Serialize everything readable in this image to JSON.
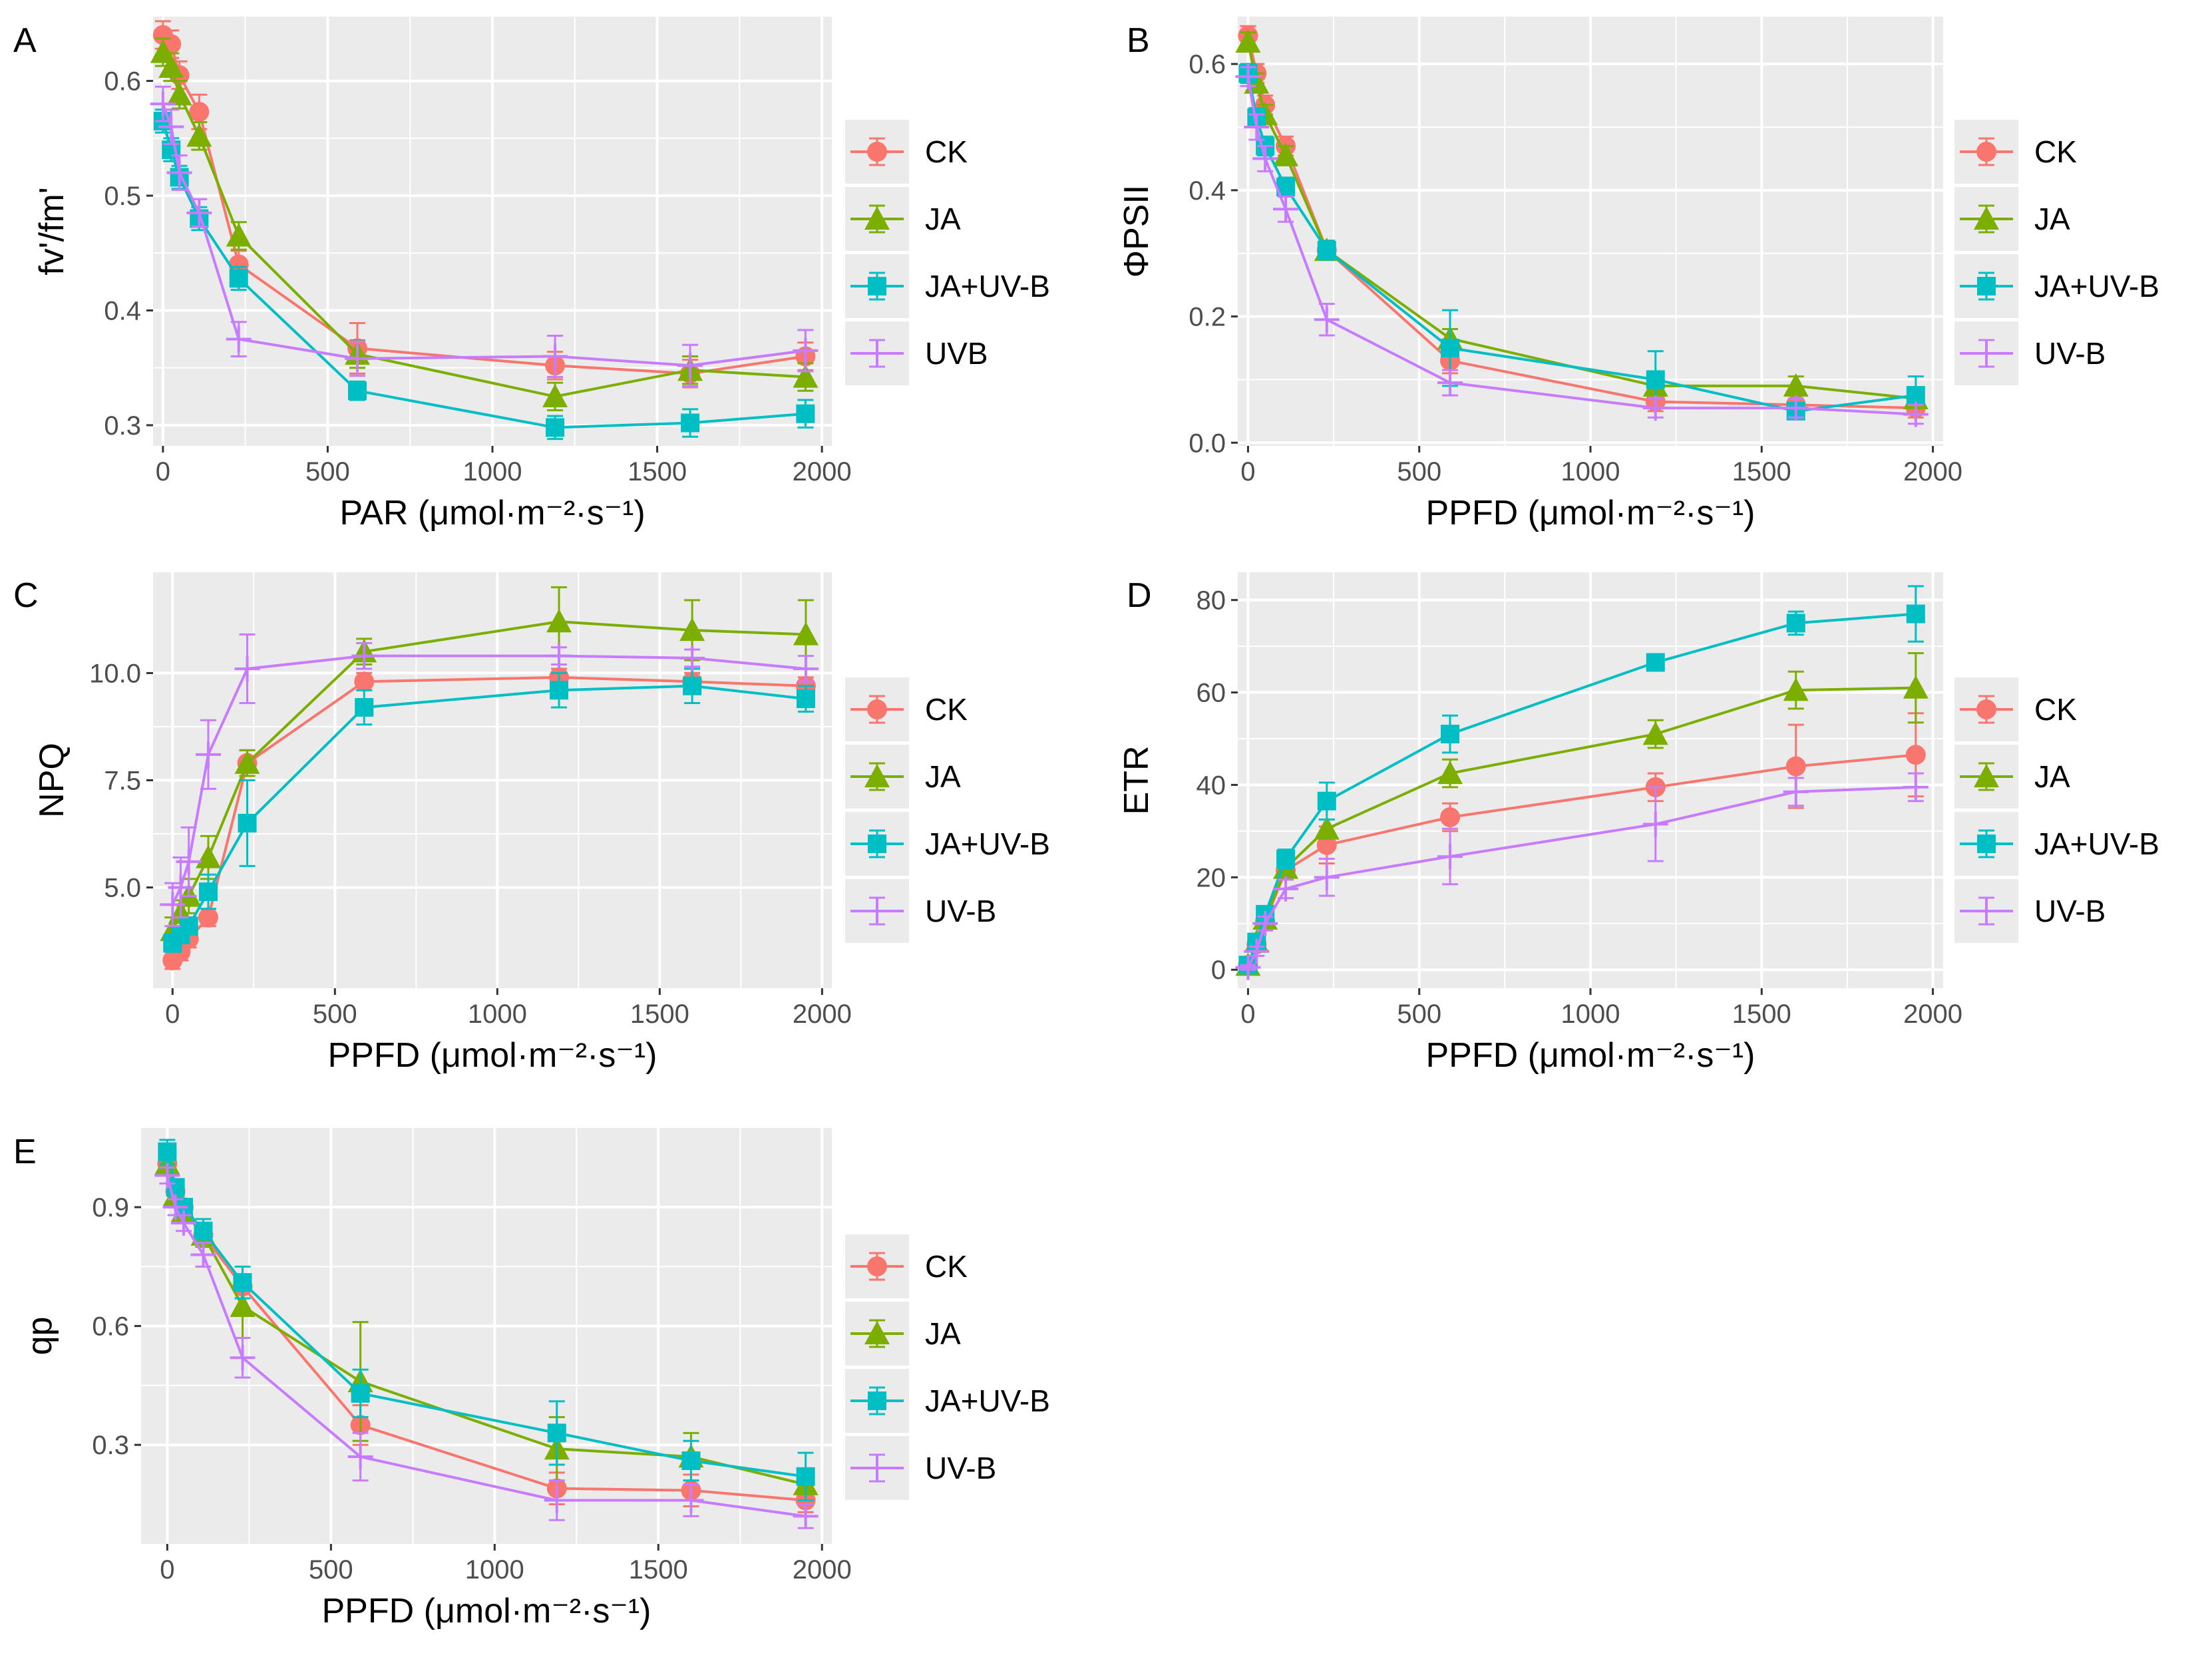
{
  "figure": {
    "panel_count": 5
  },
  "chart_data": [
    {
      "panel": "A",
      "type": "line",
      "xlabel": "PAR (μmol·m⁻²·s⁻¹)",
      "ylabel": "fv'/fm'",
      "xlim": [
        -30,
        2030
      ],
      "ylim": [
        0.282,
        0.656
      ],
      "xticks": [
        0,
        500,
        1000,
        1500,
        2000
      ],
      "xtick_labels": [
        "0",
        "500",
        "1000",
        "1500",
        "2000"
      ],
      "yticks": [
        0.3,
        0.4,
        0.5,
        0.6
      ],
      "ytick_labels": [
        "0.3",
        "0.4",
        "0.5",
        "0.6"
      ],
      "legend": [
        "CK",
        "JA",
        "JA+UV-B",
        "UVB"
      ],
      "series": [
        {
          "name": "CK",
          "x": [
            0,
            25,
            50,
            110,
            230,
            590,
            1190,
            1600,
            1950
          ],
          "y": [
            0.64,
            0.632,
            0.605,
            0.573,
            0.44,
            0.367,
            0.352,
            0.345,
            0.36
          ],
          "err": [
            0.012,
            0.012,
            0.012,
            0.015,
            0.012,
            0.022,
            0.012,
            0.012,
            0.012
          ]
        },
        {
          "name": "JA",
          "x": [
            0,
            25,
            50,
            110,
            230,
            590,
            1190,
            1600,
            1950
          ],
          "y": [
            0.625,
            0.612,
            0.588,
            0.552,
            0.465,
            0.362,
            0.325,
            0.348,
            0.342
          ],
          "err": [
            0.012,
            0.012,
            0.012,
            0.012,
            0.012,
            0.012,
            0.012,
            0.012,
            0.012
          ]
        },
        {
          "name": "JA+UV-B",
          "x": [
            0,
            25,
            50,
            110,
            230,
            590,
            1190,
            1600,
            1950
          ],
          "y": [
            0.565,
            0.54,
            0.516,
            0.48,
            0.428,
            0.33,
            0.298,
            0.302,
            0.31
          ],
          "err": [
            0.01,
            0.01,
            0.01,
            0.01,
            0.01,
            0.008,
            0.01,
            0.012,
            0.012
          ]
        },
        {
          "name": "UVB",
          "x": [
            0,
            25,
            50,
            110,
            230,
            590,
            1190,
            1600,
            1950
          ],
          "y": [
            0.58,
            0.56,
            0.52,
            0.485,
            0.375,
            0.358,
            0.36,
            0.352,
            0.365
          ],
          "err": [
            0.015,
            0.015,
            0.015,
            0.012,
            0.015,
            0.015,
            0.018,
            0.018,
            0.018
          ]
        }
      ]
    },
    {
      "panel": "B",
      "type": "line",
      "xlabel": "PPFD (μmol·m⁻²·s⁻¹)",
      "ylabel": "ΦPSII",
      "xlim": [
        -30,
        2030
      ],
      "ylim": [
        -0.005,
        0.675
      ],
      "xticks": [
        0,
        500,
        1000,
        1500,
        2000
      ],
      "xtick_labels": [
        "0",
        "500",
        "1000",
        "1500",
        "2000"
      ],
      "yticks": [
        0.0,
        0.2,
        0.4,
        0.6
      ],
      "ytick_labels": [
        "0.0",
        "0.2",
        "0.4",
        "0.6"
      ],
      "legend": [
        "CK",
        "JA",
        "JA+UV-B",
        "UV-B"
      ],
      "series": [
        {
          "name": "CK",
          "x": [
            0,
            25,
            50,
            110,
            230,
            590,
            1190,
            1600,
            1950
          ],
          "y": [
            0.645,
            0.585,
            0.535,
            0.47,
            0.305,
            0.13,
            0.065,
            0.06,
            0.055
          ],
          "err": [
            0.015,
            0.015,
            0.015,
            0.015,
            0.015,
            0.02,
            0.015,
            0.015,
            0.015
          ]
        },
        {
          "name": "JA",
          "x": [
            0,
            25,
            50,
            110,
            230,
            590,
            1190,
            1600,
            1950
          ],
          "y": [
            0.635,
            0.57,
            0.52,
            0.455,
            0.305,
            0.165,
            0.09,
            0.09,
            0.07
          ],
          "err": [
            0.015,
            0.015,
            0.015,
            0.015,
            0.015,
            0.015,
            0.015,
            0.015,
            0.015
          ]
        },
        {
          "name": "JA+UV-B",
          "x": [
            0,
            25,
            50,
            110,
            230,
            590,
            1190,
            1600,
            1950
          ],
          "y": [
            0.585,
            0.515,
            0.47,
            0.405,
            0.305,
            0.15,
            0.1,
            0.05,
            0.075
          ],
          "err": [
            0.015,
            0.015,
            0.015,
            0.015,
            0.015,
            0.06,
            0.045,
            0.01,
            0.03
          ]
        },
        {
          "name": "UV-B",
          "x": [
            0,
            25,
            50,
            110,
            230,
            590,
            1190,
            1600,
            1950
          ],
          "y": [
            0.58,
            0.5,
            0.45,
            0.37,
            0.195,
            0.095,
            0.055,
            0.055,
            0.045
          ],
          "err": [
            0.015,
            0.02,
            0.02,
            0.02,
            0.025,
            0.02,
            0.015,
            0.015,
            0.015
          ]
        }
      ]
    },
    {
      "panel": "C",
      "type": "line",
      "xlabel": "PPFD (μmol·m⁻²·s⁻¹)",
      "ylabel": "NPQ",
      "xlim": [
        -60,
        2030
      ],
      "ylim": [
        2.65,
        12.35
      ],
      "xticks": [
        0,
        500,
        1000,
        1500,
        2000
      ],
      "xtick_labels": [
        "0",
        "500",
        "1000",
        "1500",
        "2000"
      ],
      "yticks": [
        5.0,
        7.5,
        10.0
      ],
      "ytick_labels": [
        "5.0",
        "7.5",
        "10.0"
      ],
      "legend": [
        "CK",
        "JA",
        "JA+UV-B",
        "UV-B"
      ],
      "series": [
        {
          "name": "CK",
          "x": [
            0,
            25,
            50,
            110,
            230,
            590,
            1190,
            1600,
            1950
          ],
          "y": [
            3.3,
            3.5,
            3.8,
            4.3,
            7.9,
            9.8,
            9.9,
            9.8,
            9.7
          ],
          "err": [
            0.2,
            0.2,
            0.2,
            0.2,
            0.3,
            0.2,
            0.2,
            0.2,
            0.2
          ]
        },
        {
          "name": "JA",
          "x": [
            0,
            25,
            50,
            110,
            230,
            590,
            1190,
            1600,
            1950
          ],
          "y": [
            4.0,
            4.4,
            4.8,
            5.7,
            7.9,
            10.5,
            11.2,
            11.0,
            10.9
          ],
          "err": [
            0.3,
            0.3,
            0.4,
            0.5,
            0.3,
            0.3,
            0.8,
            0.7,
            0.8
          ]
        },
        {
          "name": "JA+UV-B",
          "x": [
            0,
            25,
            50,
            110,
            230,
            590,
            1190,
            1600,
            1950
          ],
          "y": [
            3.7,
            3.9,
            4.1,
            4.9,
            6.5,
            9.2,
            9.6,
            9.7,
            9.4
          ],
          "err": [
            0.2,
            0.2,
            0.2,
            0.4,
            1.0,
            0.4,
            0.4,
            0.4,
            0.3
          ]
        },
        {
          "name": "UV-B",
          "x": [
            0,
            25,
            50,
            110,
            230,
            590,
            1190,
            1600,
            1950
          ],
          "y": [
            4.6,
            5.0,
            5.6,
            8.1,
            10.1,
            10.4,
            10.4,
            10.35,
            10.1
          ],
          "err": [
            0.5,
            0.7,
            0.8,
            0.8,
            0.8,
            0.3,
            0.2,
            0.2,
            0.3
          ]
        }
      ]
    },
    {
      "panel": "D",
      "type": "line",
      "xlabel": "PPFD (μmol·m⁻²·s⁻¹)",
      "ylabel": "ETR",
      "xlim": [
        -30,
        2030
      ],
      "ylim": [
        -4,
        86
      ],
      "xticks": [
        0,
        500,
        1000,
        1500,
        2000
      ],
      "xtick_labels": [
        "0",
        "500",
        "1000",
        "1500",
        "2000"
      ],
      "yticks": [
        0,
        20,
        40,
        60,
        80
      ],
      "ytick_labels": [
        "0",
        "20",
        "40",
        "60",
        "80"
      ],
      "legend": [
        "CK",
        "JA",
        "JA+UV-B",
        "UV-B"
      ],
      "series": [
        {
          "name": "CK",
          "x": [
            0,
            25,
            50,
            110,
            230,
            590,
            1190,
            1600,
            1950
          ],
          "y": [
            1,
            5.5,
            10.5,
            21.5,
            27,
            33,
            39.5,
            44,
            46.5
          ],
          "err": [
            0.5,
            1,
            1.5,
            2,
            4,
            3,
            3,
            9,
            9
          ]
        },
        {
          "name": "JA",
          "x": [
            0,
            25,
            50,
            110,
            230,
            590,
            1190,
            1600,
            1950
          ],
          "y": [
            1,
            6,
            11,
            22,
            30.5,
            42.5,
            51,
            60.5,
            61
          ],
          "err": [
            0.5,
            1,
            1.5,
            2,
            2,
            3,
            3,
            4,
            7.5
          ]
        },
        {
          "name": "JA+UV-B",
          "x": [
            0,
            25,
            50,
            110,
            230,
            590,
            1190,
            1600,
            1950
          ],
          "y": [
            1,
            6,
            12,
            24,
            36.5,
            51,
            66.5,
            75,
            77
          ],
          "err": [
            0.5,
            1,
            1.5,
            2,
            4,
            4,
            1.5,
            2.5,
            6
          ]
        },
        {
          "name": "UV-B",
          "x": [
            0,
            25,
            50,
            110,
            230,
            590,
            1190,
            1600,
            1950
          ],
          "y": [
            0.5,
            4,
            10,
            17.5,
            20,
            24.5,
            31.5,
            38.5,
            39.5
          ],
          "err": [
            0.5,
            1,
            1.5,
            2,
            4,
            6,
            8,
            3,
            3
          ]
        }
      ]
    },
    {
      "panel": "E",
      "type": "line",
      "xlabel": "PPFD (μmol·m⁻²·s⁻¹)",
      "ylabel": "qp",
      "xlim": [
        -80,
        2030
      ],
      "ylim": [
        0.05,
        1.1
      ],
      "xticks": [
        0,
        500,
        1000,
        1500,
        2000
      ],
      "xtick_labels": [
        "0",
        "500",
        "1000",
        "1500",
        "2000"
      ],
      "yticks": [
        0.3,
        0.6,
        0.9
      ],
      "ytick_labels": [
        "0.3",
        "0.6",
        "0.9"
      ],
      "legend": [
        "CK",
        "JA",
        "JA+UV-B",
        "UV-B"
      ],
      "series": [
        {
          "name": "CK",
          "x": [
            0,
            25,
            50,
            110,
            230,
            590,
            1190,
            1600,
            1950
          ],
          "y": [
            1.01,
            0.94,
            0.9,
            0.83,
            0.7,
            0.35,
            0.19,
            0.185,
            0.16
          ],
          "err": [
            0.02,
            0.02,
            0.02,
            0.02,
            0.03,
            0.05,
            0.04,
            0.04,
            0.03
          ]
        },
        {
          "name": "JA",
          "x": [
            0,
            25,
            50,
            110,
            230,
            590,
            1190,
            1600,
            1950
          ],
          "y": [
            1.01,
            0.93,
            0.89,
            0.83,
            0.65,
            0.46,
            0.29,
            0.27,
            0.2
          ],
          "err": [
            0.03,
            0.02,
            0.03,
            0.03,
            0.08,
            0.15,
            0.08,
            0.06,
            0.04
          ]
        },
        {
          "name": "JA+UV-B",
          "x": [
            0,
            25,
            50,
            110,
            230,
            590,
            1190,
            1600,
            1950
          ],
          "y": [
            1.04,
            0.95,
            0.9,
            0.84,
            0.71,
            0.43,
            0.33,
            0.26,
            0.22
          ],
          "err": [
            0.03,
            0.02,
            0.02,
            0.03,
            0.04,
            0.06,
            0.08,
            0.05,
            0.06
          ]
        },
        {
          "name": "UV-B",
          "x": [
            0,
            25,
            50,
            110,
            230,
            590,
            1190,
            1600,
            1950
          ],
          "y": [
            0.98,
            0.9,
            0.86,
            0.78,
            0.52,
            0.27,
            0.16,
            0.16,
            0.12
          ],
          "err": [
            0.02,
            0.02,
            0.02,
            0.03,
            0.05,
            0.06,
            0.05,
            0.04,
            0.03
          ]
        }
      ]
    }
  ],
  "styles": {
    "series_colors": {
      "CK": "#F8766D",
      "JA": "#7CAE00",
      "JA+UV-B": "#00BFC4",
      "UVB": "#C77CFF",
      "UV-B": "#C77CFF"
    },
    "series_markers": {
      "CK": "circle",
      "JA": "triangle",
      "JA+UV-B": "square",
      "UVB": "plus",
      "UV-B": "plus"
    },
    "panel_background": "#EBEBEB",
    "grid_color": "#FFFFFF"
  }
}
